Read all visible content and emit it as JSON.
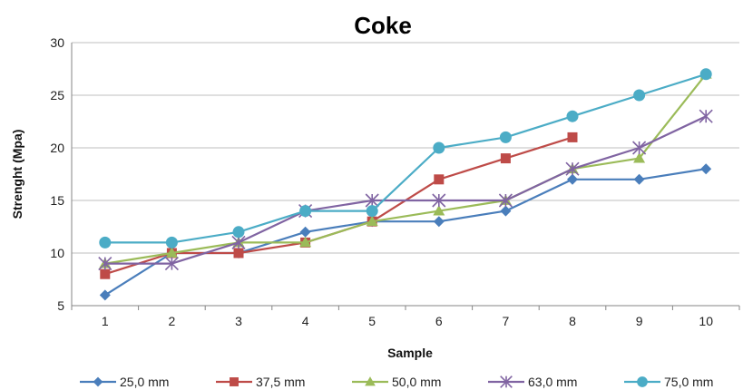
{
  "chart_data": {
    "type": "line",
    "title": "Coke",
    "xlabel": "Sample",
    "ylabel": "Strenght (Mpa)",
    "categories": [
      "1",
      "2",
      "3",
      "4",
      "5",
      "6",
      "7",
      "8",
      "9",
      "10"
    ],
    "ylim": [
      5,
      30
    ],
    "yticks": [
      "5",
      "10",
      "15",
      "20",
      "25",
      "30"
    ],
    "grid": "horizontal",
    "legend_position": "bottom",
    "series": [
      {
        "name": "25,0 mm",
        "color": "#4A7EBB",
        "marker": "diamond",
        "values": [
          6,
          10,
          10,
          12,
          13,
          13,
          14,
          17,
          17,
          18
        ]
      },
      {
        "name": "37,5 mm",
        "color": "#BE4B48",
        "marker": "square",
        "values": [
          8,
          10,
          10,
          11,
          13,
          17,
          19,
          21,
          null,
          null
        ]
      },
      {
        "name": "50,0 mm",
        "color": "#9BBB59",
        "marker": "triangle",
        "values": [
          9,
          10,
          11,
          11,
          13,
          14,
          15,
          18,
          19,
          27
        ]
      },
      {
        "name": "63,0 mm",
        "color": "#8064A2",
        "marker": "star",
        "values": [
          9,
          9,
          11,
          14,
          15,
          15,
          15,
          18,
          20,
          23
        ]
      },
      {
        "name": "75,0 mm",
        "color": "#4BACC6",
        "marker": "circle",
        "values": [
          11,
          11,
          12,
          14,
          14,
          20,
          21,
          23,
          25,
          27
        ]
      }
    ]
  }
}
